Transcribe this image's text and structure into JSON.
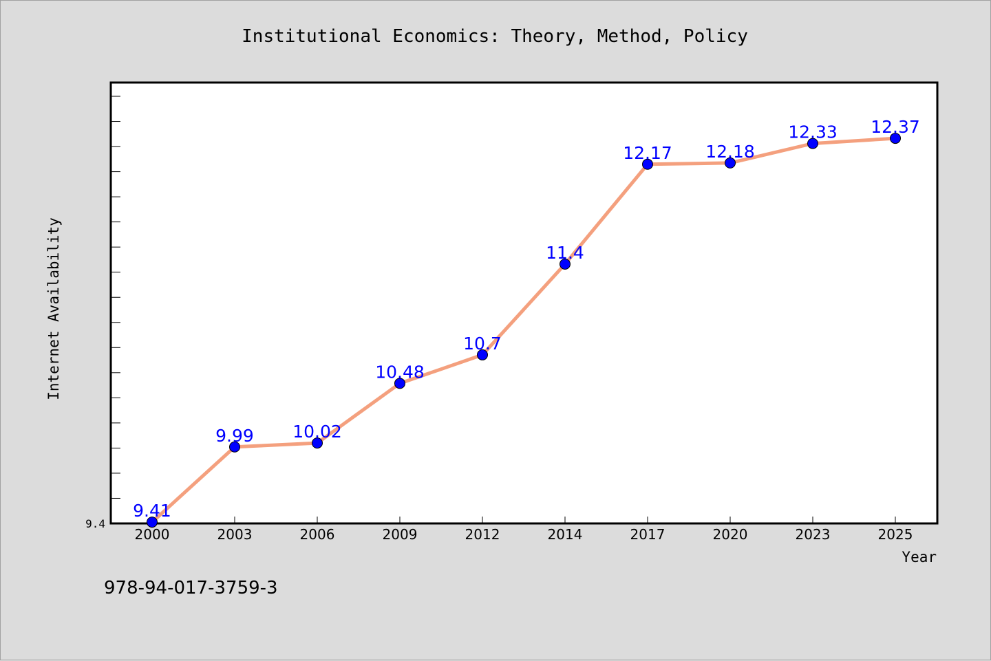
{
  "chart_data": {
    "type": "line",
    "title": "Institutional Economics: Theory, Method, Policy",
    "xlabel": "Year",
    "ylabel": "Internet Availability",
    "categories": [
      "2000",
      "2003",
      "2006",
      "2009",
      "2012",
      "2014",
      "2017",
      "2020",
      "2023",
      "2025"
    ],
    "series": [
      {
        "values": [
          9.41,
          9.99,
          10.02,
          10.48,
          10.7,
          11.4,
          12.17,
          12.18,
          12.33,
          12.37
        ],
        "labels": [
          "9.41",
          "9.99",
          "10.02",
          "10.48",
          "10.7",
          "11.4",
          "12.17",
          "12.18",
          "12.33",
          "12.37"
        ]
      }
    ],
    "ylim": [
      9.4,
      12.8
    ],
    "ytick_labels": [
      "9.4"
    ],
    "grid": false,
    "line_color": "#f4a07e",
    "marker_color": "#0000ff",
    "label_color": "#0000ff"
  },
  "footer": {
    "isbn": "978-94-017-3759-3"
  }
}
